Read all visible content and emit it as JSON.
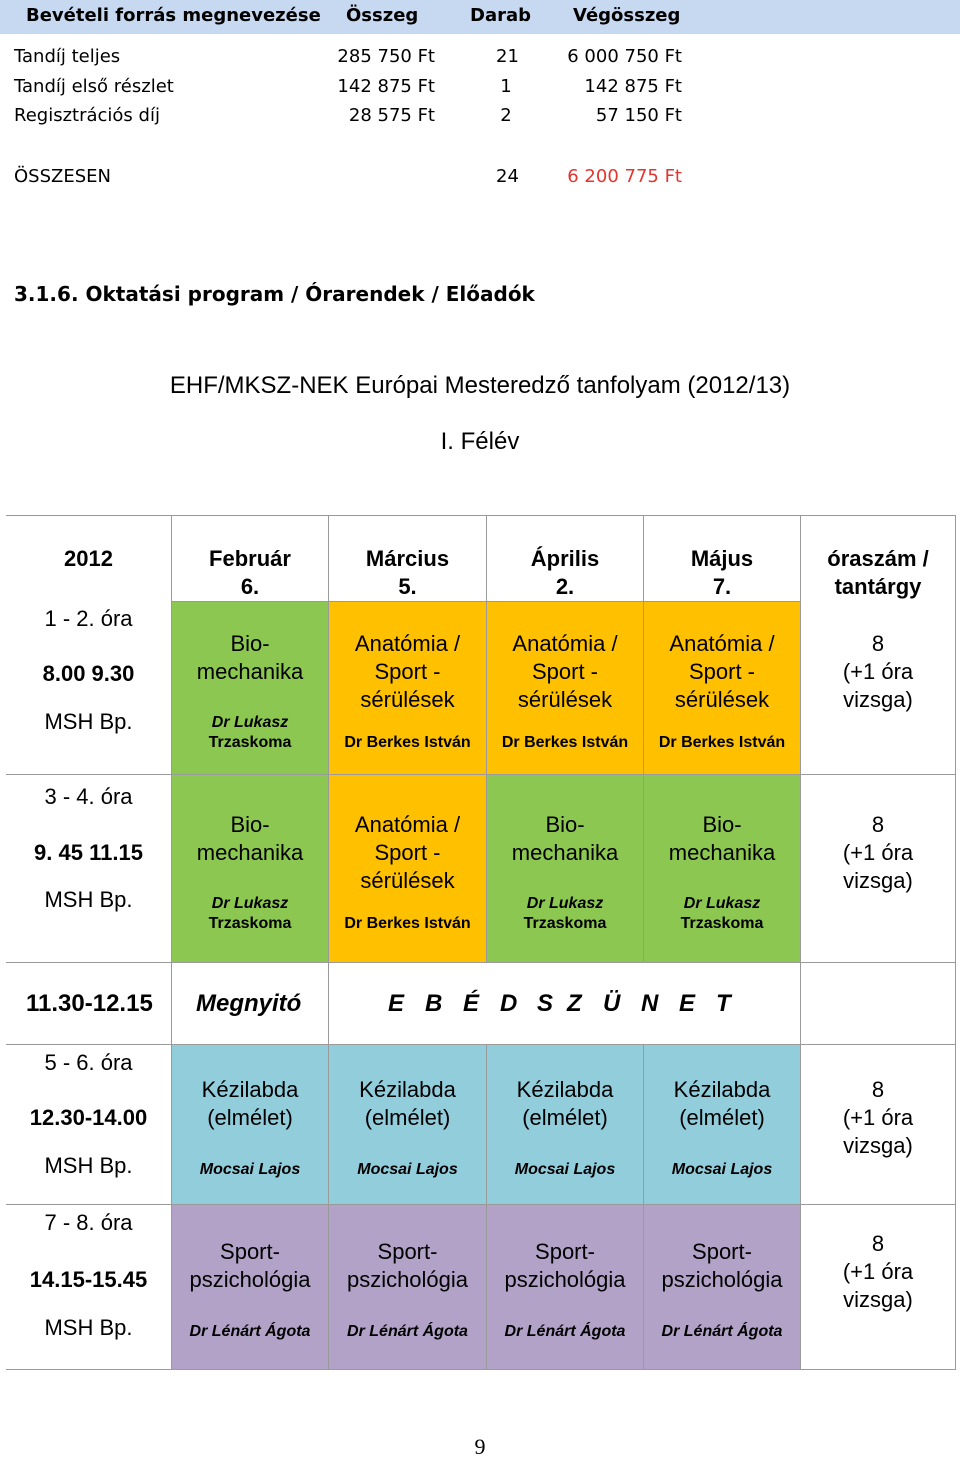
{
  "revenue": {
    "headers": [
      "Bevételi forrás megnevezése",
      "Összeg",
      "Darab",
      "Végösszeg"
    ],
    "rows": [
      {
        "name": "Tandíj teljes",
        "amount": "285 750 Ft",
        "qty": "21",
        "total": "6 000 750 Ft"
      },
      {
        "name": "Tandíj első részlet",
        "amount": "142 875 Ft",
        "qty": "1",
        "total": "142 875 Ft"
      },
      {
        "name": "Regisztrációs díj",
        "amount": "28 575 Ft",
        "qty": "2",
        "total": "57 150 Ft"
      }
    ],
    "sum": {
      "label": "ÖSSZESEN",
      "qty": "24",
      "total": "6 200 775 Ft"
    },
    "header_color": "#c6d9f1",
    "sum_total_color": "#e3342f"
  },
  "section_heading": "3.1.6. Oktatási program / Órarendek / Előadók",
  "course_title": "EHF/MKSZ-NEK Európai Mesteredző tanfolyam (2012/13)",
  "semester": "I. Félév",
  "schedule": {
    "year": "2012",
    "months": [
      {
        "name": "Február",
        "day": "6."
      },
      {
        "name": "Március",
        "day": "5."
      },
      {
        "name": "Április",
        "day": "2."
      },
      {
        "name": "Május",
        "day": "7."
      }
    ],
    "hours_header": [
      "óraszám /",
      "tantárgy"
    ],
    "slots": [
      {
        "hours": "1 - 2. óra",
        "time": "8.00 9.30",
        "place": "MSH Bp."
      },
      {
        "hours": "3 - 4. óra",
        "time": "9. 45 11.15",
        "place": "MSH Bp."
      },
      {
        "hours": "5 - 6. óra",
        "time": "12.30-14.00",
        "place": "MSH Bp."
      },
      {
        "hours": "7 - 8. óra",
        "time": "14.15-15.45",
        "place": "MSH Bp."
      }
    ],
    "subjects": {
      "bio": {
        "l1": "Bio-",
        "l2": "mechanika",
        "lec1": "Dr Lukasz",
        "lec2": "Trzaskoma"
      },
      "anat": {
        "l1": "Anatómia /",
        "l2": "Sport -",
        "l3": "sérülések",
        "lec": "Dr Berkes István"
      },
      "kez": {
        "l1": "Kézilabda",
        "l2": "(elmélet)",
        "lec": "Mocsai Lajos"
      },
      "psy": {
        "l1": "Sport-",
        "l2": "pszichológia",
        "lec": "Dr Lénárt Ágota"
      }
    },
    "hours_count": {
      "n": "8",
      "l2": "(+1 óra",
      "l3": "vizsga)"
    },
    "break_row": {
      "time": "11.30-12.15",
      "label": "Megnyitó",
      "letters": [
        "E",
        "B",
        "É",
        "D",
        "S",
        "Z",
        "Ü",
        "N",
        "E",
        "T"
      ]
    },
    "colors": {
      "biomechanika": "#8cc751",
      "anatomia": "#ffc000",
      "kezilabda": "#92cddc",
      "pszichologia": "#b2a2c7"
    }
  },
  "page_number": "9"
}
